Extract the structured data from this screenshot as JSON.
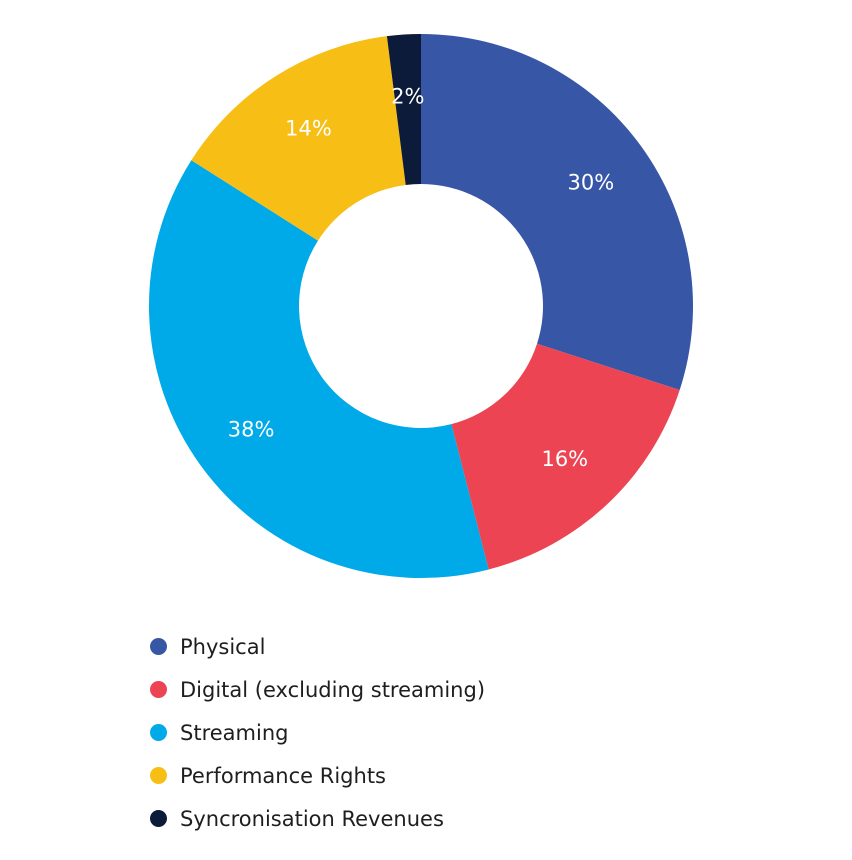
{
  "chart_data": {
    "type": "pie",
    "subtype": "donut",
    "slices": [
      {
        "name": "Physical",
        "value": 30,
        "label": "30%",
        "color": "#3757a6"
      },
      {
        "name": "Digital (excluding streaming)",
        "value": 16,
        "label": "16%",
        "color": "#ec4452"
      },
      {
        "name": "Streaming",
        "value": 38,
        "label": "38%",
        "color": "#00a9e8"
      },
      {
        "name": "Performance Rights",
        "value": 14,
        "label": "14%",
        "color": "#f7be16"
      },
      {
        "name": "Syncronisation Revenues",
        "value": 2,
        "label": "2%",
        "color": "#0c1b3a"
      }
    ],
    "legend_position": "bottom-left",
    "title": ""
  }
}
